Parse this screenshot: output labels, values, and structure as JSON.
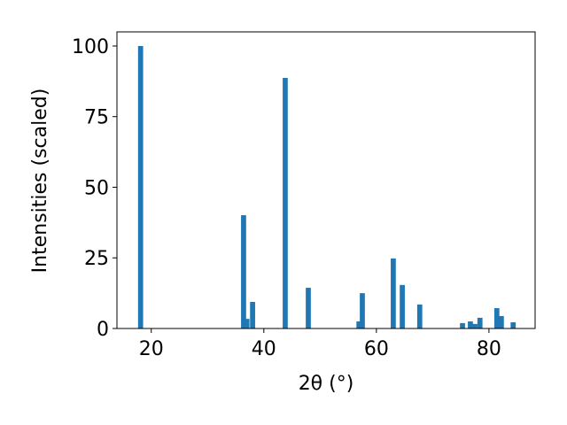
{
  "chart_data": {
    "type": "bar",
    "x_label": "2θ (°)",
    "y_label": "Intensities (scaled)",
    "x": [
      18.1,
      36.4,
      37.0,
      38.0,
      43.8,
      47.9,
      56.9,
      57.5,
      63.0,
      64.6,
      67.7,
      75.3,
      76.7,
      77.5,
      78.4,
      81.4,
      82.2,
      84.3
    ],
    "values": [
      100,
      40.1,
      3.4,
      9.4,
      88.7,
      14.4,
      2.5,
      12.5,
      24.8,
      15.4,
      8.5,
      1.9,
      2.5,
      1.6,
      3.8,
      7.2,
      4.4,
      2.2
    ],
    "color": "#1f77b4",
    "xlim": [
      13.9,
      88.2
    ],
    "xticks": [
      20,
      40,
      60,
      80
    ],
    "ylim": [
      0,
      105
    ],
    "yticks": [
      0,
      25,
      50,
      75,
      100
    ]
  }
}
